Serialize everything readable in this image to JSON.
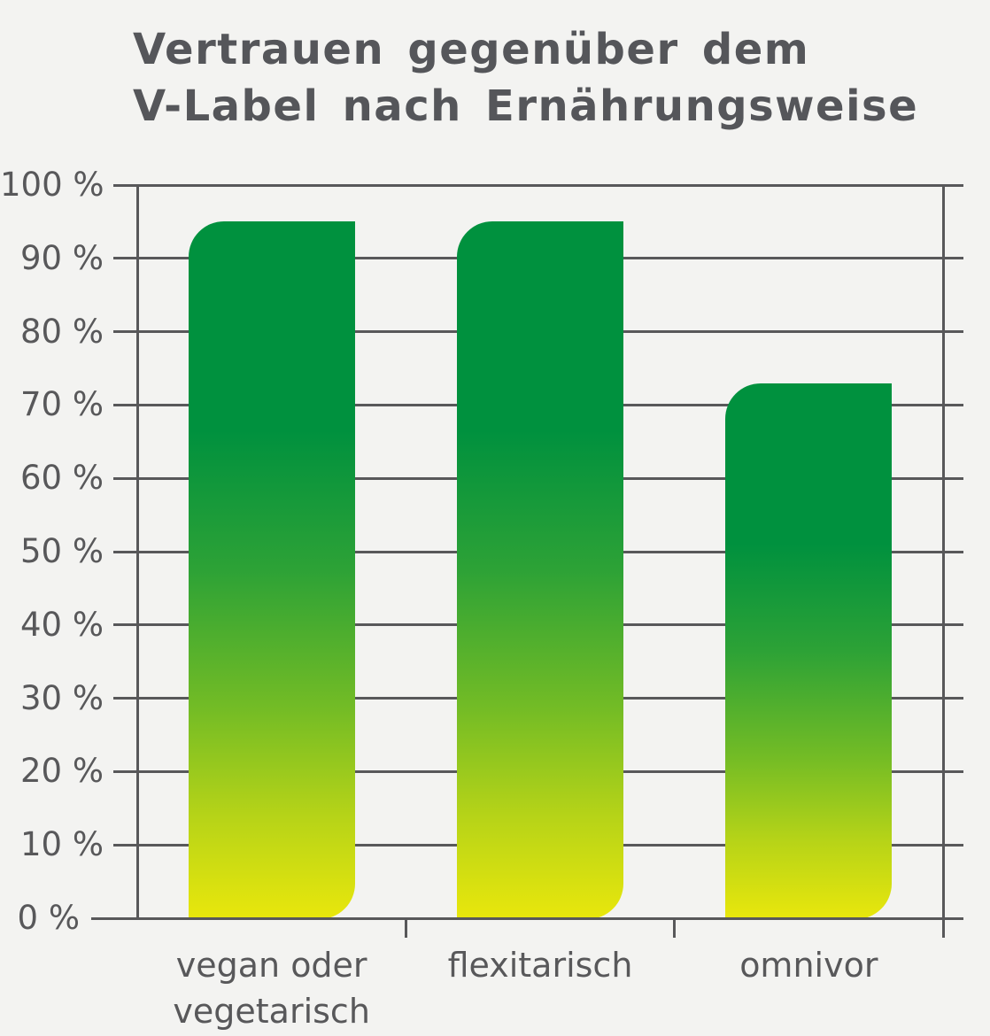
{
  "title": {
    "line1": "Vertrauen gegenüber dem",
    "line2": "V-Label nach Ernährungsweise"
  },
  "chart_data": {
    "type": "bar",
    "title": "Vertrauen gegenüber dem V-Label nach Ernährungsweise",
    "categories": [
      "vegan oder\nvegetarisch",
      "flexitarisch",
      "omnivor"
    ],
    "values": [
      95,
      95,
      73
    ],
    "xlabel": "",
    "ylabel": "",
    "ylim": [
      0,
      100
    ],
    "ytick_step": 10,
    "ytick_labels": [
      "0 %",
      "10 %",
      "20 %",
      "30 %",
      "40 %",
      "50 %",
      "60 %",
      "70 %",
      "80 %",
      "90 %",
      "100 %"
    ],
    "grid": true,
    "legend": "none",
    "colors": {
      "background": "#F3F3F1",
      "axis": "#58585A",
      "tick_text": "#58585A",
      "title_text": "#55565A",
      "bar_gradient": [
        "#00913E 0%",
        "#00913E 30%",
        "#2DA236 50%",
        "#74BC25 70%",
        "#B5D318 85%",
        "#E9E70C 100%"
      ]
    }
  }
}
